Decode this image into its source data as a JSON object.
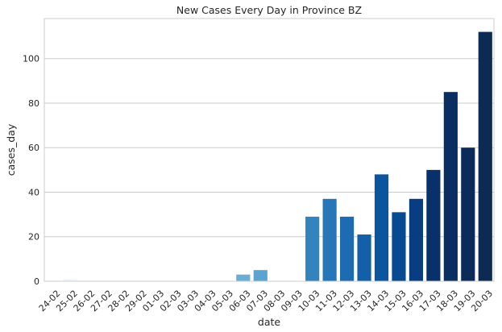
{
  "chart_data": {
    "type": "bar",
    "title": "New Cases Every Day in Province BZ",
    "xlabel": "date",
    "ylabel": "cases_day",
    "categories": [
      "24-02",
      "25-02",
      "26-02",
      "27-02",
      "28-02",
      "29-02",
      "01-03",
      "02-03",
      "03-03",
      "04-03",
      "05-03",
      "06-03",
      "07-03",
      "08-03",
      "09-03",
      "10-03",
      "11-03",
      "12-03",
      "13-03",
      "14-03",
      "15-03",
      "16-03",
      "17-03",
      "18-03",
      "19-03",
      "20-03"
    ],
    "values": [
      0,
      1,
      0,
      0,
      0,
      0,
      0,
      0,
      0,
      0,
      0,
      3,
      5,
      0,
      0,
      29,
      37,
      29,
      21,
      48,
      31,
      37,
      50,
      85,
      60,
      112
    ],
    "ylim": [
      0,
      118
    ],
    "yticks": [
      0,
      20,
      40,
      60,
      80,
      100
    ],
    "grid": true,
    "palette": "Blues",
    "bar_colors": [
      "#f7fbff",
      "#eef5fc",
      "#e6f0f9",
      "#ddeaf6",
      "#d4e4f4",
      "#c9ddf0",
      "#bed8ec",
      "#b1d2e7",
      "#a1cbe2",
      "#90c1de",
      "#7db8da",
      "#6aaed6",
      "#5ba3d0",
      "#4d99ca",
      "#3f8fc5",
      "#3383be",
      "#2777b8",
      "#1d6bb0",
      "#1460a8",
      "#0b559f",
      "#084a92",
      "#083e81",
      "#08306b",
      "#0a2e62",
      "#0b2b5a",
      "#0c2a52"
    ]
  }
}
